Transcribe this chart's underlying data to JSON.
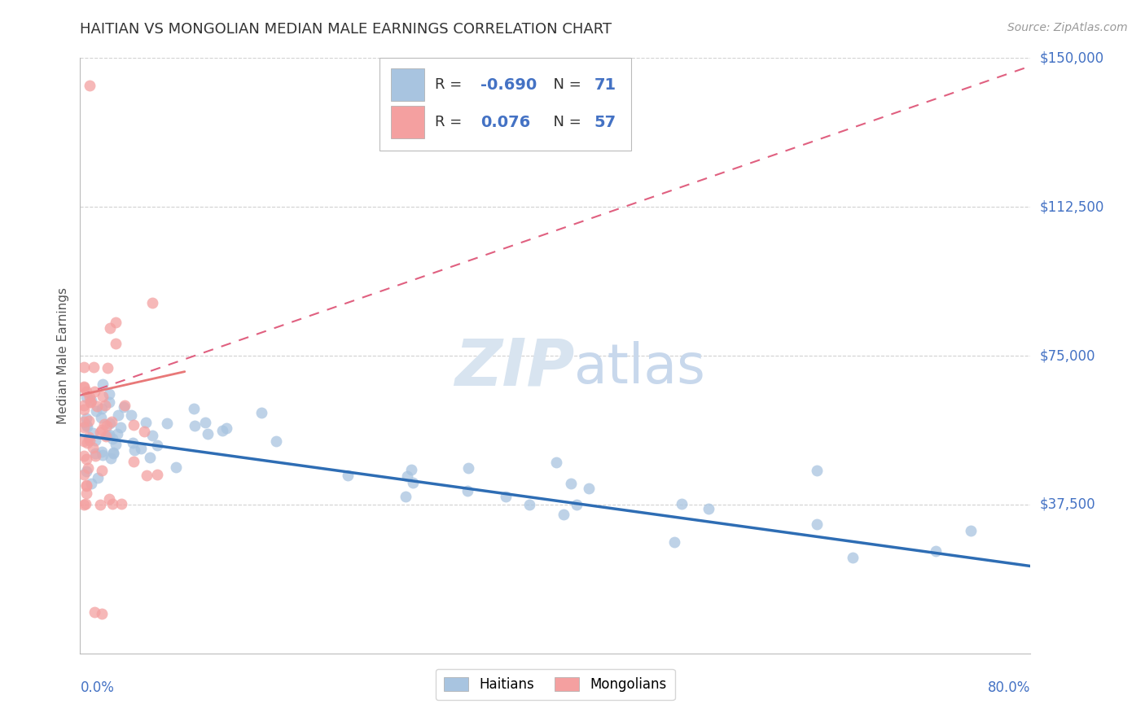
{
  "title": "HAITIAN VS MONGOLIAN MEDIAN MALE EARNINGS CORRELATION CHART",
  "source": "Source: ZipAtlas.com",
  "ylabel": "Median Male Earnings",
  "yticks": [
    0,
    37500,
    75000,
    112500,
    150000
  ],
  "ytick_labels": [
    "",
    "$37,500",
    "$75,000",
    "$112,500",
    "$150,000"
  ],
  "xlim": [
    0.0,
    0.8
  ],
  "ylim": [
    0,
    150000
  ],
  "blue_R": "-0.690",
  "blue_N": "71",
  "pink_R": "0.076",
  "pink_N": "57",
  "blue_scatter_color": "#A8C4E0",
  "pink_scatter_color": "#F4A0A0",
  "blue_line_color": "#2E6DB4",
  "pink_line_color": "#E06080",
  "pink_solid_color": "#E87878",
  "watermark_color": "#D8E4F0",
  "title_color": "#333333",
  "axis_value_color": "#4472C4",
  "legend_label_color": "#333333",
  "source_color": "#999999",
  "legend_label1": "Haitians",
  "legend_label2": "Mongolians"
}
